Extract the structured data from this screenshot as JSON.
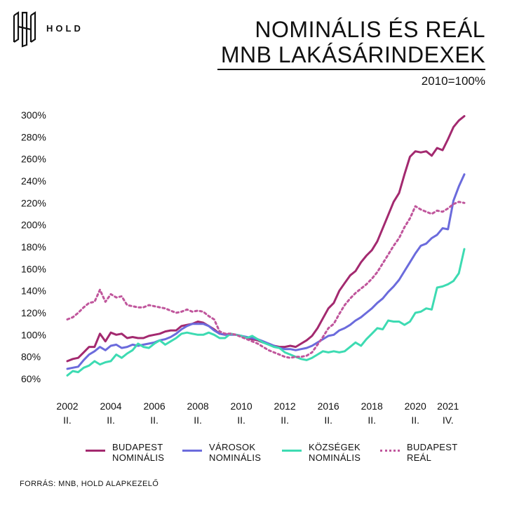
{
  "logo": {
    "text": "HOLD"
  },
  "title": {
    "line1": "NOMINÁLIS ÉS REÁL",
    "line2": "MNB LAKÁSÁRINDEXEK"
  },
  "subtitle": "2010=100%",
  "source": "FORRÁS: MNB, HOLD ALAPKEZELŐ",
  "chart_data": {
    "type": "line",
    "ylim": [
      60,
      300
    ],
    "y_ticks": [
      "60%",
      "80%",
      "100%",
      "120%",
      "140%",
      "160%",
      "180%",
      "200%",
      "220%",
      "240%",
      "260%",
      "280%",
      "300%"
    ],
    "x_ticks": [
      {
        "year": "2002",
        "quarter": "II.",
        "t": 0
      },
      {
        "year": "2004",
        "quarter": "II.",
        "t": 8
      },
      {
        "year": "2006",
        "quarter": "II.",
        "t": 16
      },
      {
        "year": "2008",
        "quarter": "II.",
        "t": 24
      },
      {
        "year": "2010",
        "quarter": "II.",
        "t": 32
      },
      {
        "year": "2012",
        "quarter": "II.",
        "t": 40
      },
      {
        "year": "2016",
        "quarter": "II.",
        "t": 48
      },
      {
        "year": "2018",
        "quarter": "II.",
        "t": 56
      },
      {
        "year": "2020",
        "quarter": "II.",
        "t": 64
      },
      {
        "year": "2021",
        "quarter": "IV.",
        "t": 70
      }
    ],
    "series": [
      {
        "name": "BUDAPEST NOMINÁLIS",
        "line1": "BUDAPEST",
        "line2": "NOMINÁLIS",
        "color": "#a3296f",
        "dashed": false,
        "values": [
          76,
          78,
          79,
          84,
          89,
          89,
          101,
          94,
          102,
          100,
          101,
          97,
          98,
          97,
          97,
          99,
          100,
          101,
          103,
          104,
          104,
          108,
          109,
          110,
          112,
          111,
          108,
          105,
          101,
          100,
          101,
          100,
          99,
          97,
          96,
          95,
          93,
          92,
          90,
          89,
          89,
          90,
          89,
          92,
          95,
          99,
          106,
          115,
          124,
          129,
          140,
          147,
          154,
          158,
          166,
          172,
          177,
          185,
          197,
          209,
          221,
          229,
          246,
          262,
          267,
          266,
          267,
          263,
          270,
          268,
          278,
          289,
          295,
          299
        ]
      },
      {
        "name": "VÁROSOK NOMINÁLIS",
        "line1": "VÁROSOK",
        "line2": "NOMINÁLIS",
        "color": "#6b6bdc",
        "dashed": false,
        "values": [
          69,
          70,
          71,
          77,
          82,
          85,
          89,
          86,
          90,
          91,
          88,
          89,
          91,
          90,
          91,
          92,
          93,
          95,
          96,
          98,
          101,
          105,
          108,
          110,
          110,
          110,
          108,
          104,
          101,
          100,
          100,
          100,
          99,
          98,
          97,
          96,
          94,
          92,
          90,
          88,
          87,
          87,
          86,
          87,
          88,
          90,
          93,
          96,
          99,
          100,
          104,
          106,
          109,
          113,
          116,
          120,
          124,
          129,
          133,
          139,
          144,
          150,
          158,
          166,
          174,
          181,
          183,
          188,
          191,
          197,
          196,
          222,
          235,
          246
        ]
      },
      {
        "name": "KÖZSÉGEK NOMINÁLIS",
        "line1": "KÖZSÉGEK",
        "line2": "NOMINÁLIS",
        "color": "#3ddbb2",
        "dashed": false,
        "values": [
          63,
          67,
          66,
          70,
          72,
          76,
          73,
          75,
          76,
          82,
          79,
          83,
          86,
          92,
          89,
          88,
          92,
          95,
          91,
          94,
          97,
          101,
          102,
          101,
          100,
          100,
          102,
          100,
          97,
          97,
          101,
          100,
          99,
          97,
          99,
          96,
          93,
          91,
          89,
          88,
          84,
          82,
          80,
          78,
          77,
          79,
          82,
          85,
          84,
          85,
          84,
          85,
          89,
          93,
          90,
          96,
          101,
          106,
          105,
          113,
          112,
          112,
          109,
          112,
          120,
          121,
          124,
          123,
          143,
          144,
          146,
          149,
          156,
          178
        ]
      },
      {
        "name": "BUDAPEST REÁL",
        "line1": "BUDAPEST",
        "line2": "REÁL",
        "color": "#c0569c",
        "dashed": true,
        "values": [
          114,
          116,
          120,
          125,
          129,
          130,
          141,
          130,
          137,
          134,
          135,
          127,
          126,
          125,
          125,
          127,
          126,
          125,
          124,
          122,
          120,
          121,
          123,
          121,
          122,
          121,
          117,
          114,
          103,
          101,
          101,
          100,
          98,
          96,
          94,
          92,
          89,
          86,
          84,
          82,
          80,
          79,
          80,
          80,
          81,
          84,
          91,
          98,
          106,
          110,
          119,
          127,
          133,
          138,
          142,
          146,
          151,
          157,
          165,
          173,
          181,
          188,
          198,
          206,
          217,
          214,
          212,
          210,
          213,
          212,
          215,
          219,
          221,
          220
        ]
      }
    ]
  }
}
